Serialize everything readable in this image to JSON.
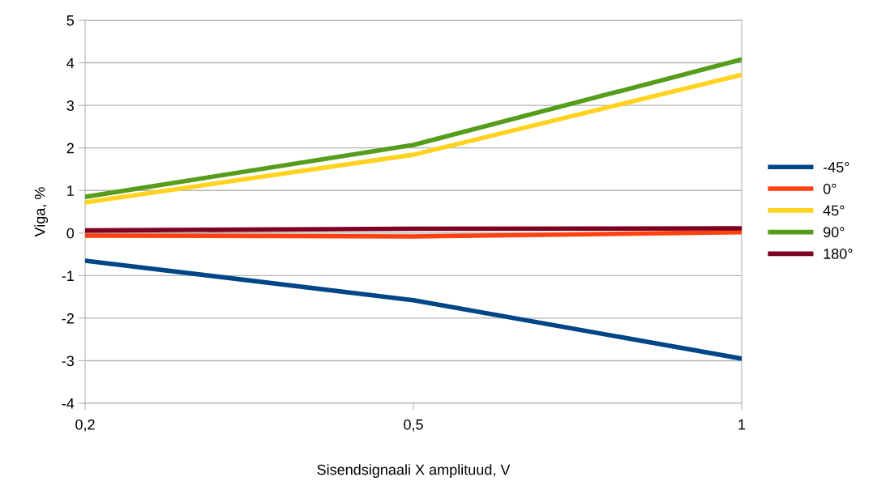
{
  "chart_data": {
    "type": "line",
    "xlabel": "Sisendsignaali X amplituud, V",
    "ylabel": "Viga, %",
    "categories": [
      "0,2",
      "0,5",
      "1"
    ],
    "series": [
      {
        "name": "-45°",
        "color": "#004586",
        "values": [
          -0.65,
          -1.58,
          -2.95
        ]
      },
      {
        "name": "0°",
        "color": "#ff420e",
        "values": [
          -0.06,
          -0.08,
          0.02
        ]
      },
      {
        "name": "45°",
        "color": "#ffd320",
        "values": [
          0.72,
          1.84,
          3.72
        ]
      },
      {
        "name": "90°",
        "color": "#579d1c",
        "values": [
          0.85,
          2.07,
          4.08
        ]
      },
      {
        "name": "180°",
        "color": "#7e0021",
        "values": [
          0.06,
          0.1,
          0.11
        ]
      }
    ],
    "ylim": [
      -4,
      5
    ],
    "yticks": [
      -4,
      -3,
      -2,
      -1,
      0,
      1,
      2,
      3,
      4,
      5
    ],
    "grid": "y",
    "legend": "right",
    "marker": "none",
    "line_style": "solid"
  }
}
